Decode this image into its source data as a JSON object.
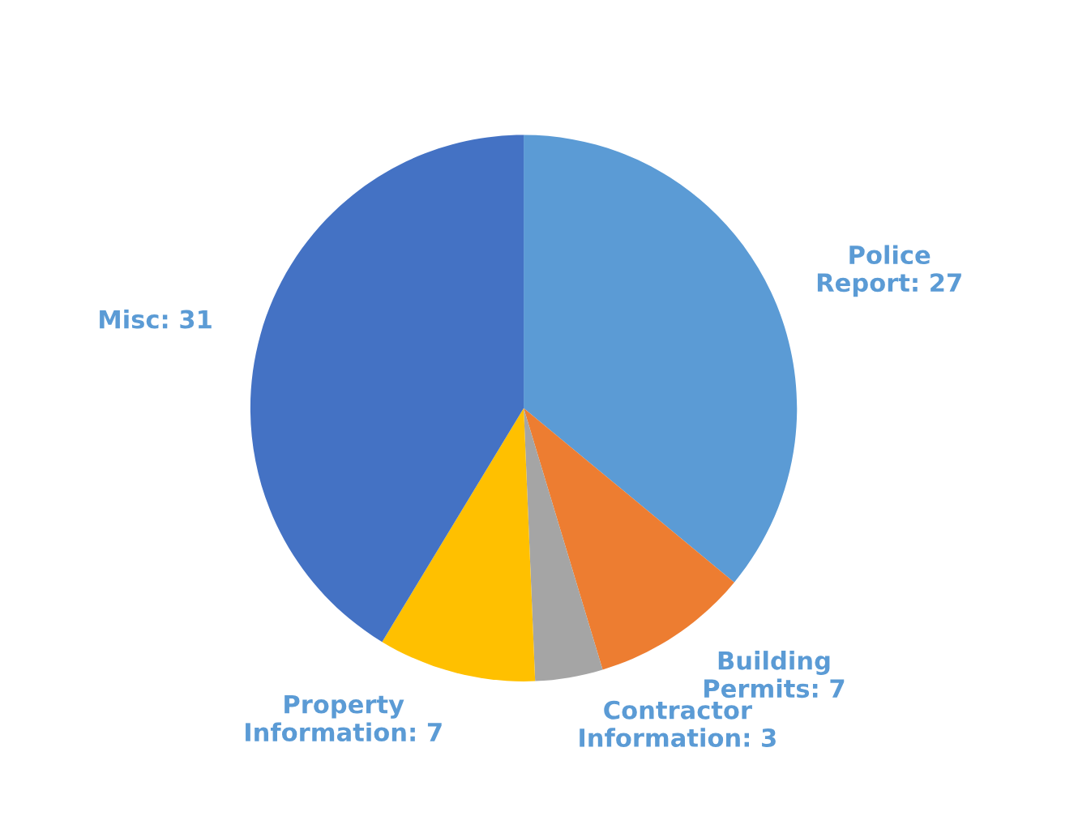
{
  "chart_data": {
    "type": "pie",
    "categories": [
      "Police Report: 27",
      "Building Permits: 7",
      "Contractor Information: 3",
      "Property Information: 7",
      "Misc: 31"
    ],
    "values": [
      27,
      7,
      3,
      7,
      31
    ],
    "colors": [
      "#5b9bd5",
      "#ed7d31",
      "#a5a5a5",
      "#ffc000",
      "#4472c4"
    ],
    "legend": false
  }
}
